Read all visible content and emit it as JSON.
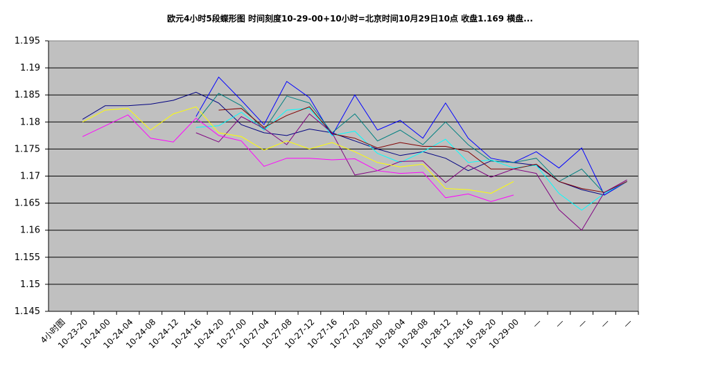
{
  "chart_data": {
    "type": "line",
    "title": "欧元4小时5段蝶形图  时间刻度10-29-00+10小时=北京时间10月29日10点  收盘1.169   横盘...",
    "categories": [
      "4小时图",
      "10-23-20",
      "10-24-00",
      "10-24-04",
      "10-24-08",
      "10-24-12",
      "10-24-16",
      "10-24-20",
      "10-27-00",
      "10-27-04",
      "10-27-08",
      "10-27-12",
      "10-27-16",
      "10-27-20",
      "10-28-00",
      "10-28-04",
      "10-28-08",
      "10-28-12",
      "10-28-16",
      "10-28-20",
      "10-29-00",
      "—",
      "—",
      "—",
      "—",
      "—"
    ],
    "ylim": [
      1.145,
      1.195
    ],
    "yticks": [
      1.145,
      1.15,
      1.155,
      1.16,
      1.165,
      1.17,
      1.175,
      1.18,
      1.185,
      1.19,
      1.195
    ],
    "grid": true,
    "series": [
      {
        "color": "#000080",
        "values": [
          null,
          1.1805,
          1.183,
          1.183,
          1.1833,
          1.184,
          1.1855,
          1.1835,
          1.1795,
          1.178,
          1.1775,
          1.1787,
          1.178,
          1.1765,
          1.175,
          1.1738,
          1.1745,
          1.1733,
          1.171,
          1.1728,
          1.1725,
          1.172,
          1.169,
          1.1675,
          1.1665,
          1.169
        ]
      },
      {
        "color": "#0000ff",
        "values": [
          null,
          null,
          null,
          null,
          null,
          null,
          1.181,
          1.1883,
          1.184,
          1.1795,
          1.1875,
          1.1845,
          1.1775,
          1.185,
          1.1785,
          1.1803,
          1.177,
          1.1835,
          1.177,
          1.1733,
          1.1725,
          1.1745,
          1.1715,
          1.1752,
          1.1665,
          1.169
        ]
      },
      {
        "color": "#008080",
        "values": [
          null,
          null,
          null,
          null,
          null,
          null,
          1.18,
          1.1853,
          1.183,
          1.1785,
          1.1848,
          1.1835,
          1.178,
          1.1815,
          1.1765,
          1.1785,
          1.1758,
          1.18,
          1.1758,
          1.1728,
          1.1725,
          1.1733,
          1.169,
          1.1713,
          1.1668,
          1.169
        ]
      },
      {
        "color": "#00ffff",
        "values": [
          null,
          null,
          null,
          null,
          null,
          null,
          1.179,
          1.1793,
          1.1818,
          1.1785,
          1.1822,
          1.1825,
          1.1775,
          1.1783,
          1.1742,
          1.1725,
          1.1745,
          1.1768,
          1.1725,
          1.173,
          1.1715,
          1.172,
          1.1668,
          1.1637,
          1.1668,
          1.169
        ]
      },
      {
        "color": "#800000",
        "values": [
          null,
          null,
          null,
          null,
          null,
          null,
          null,
          1.1822,
          1.1825,
          1.179,
          1.1812,
          1.1828,
          1.1778,
          1.177,
          1.1752,
          1.1762,
          1.1755,
          1.1755,
          1.1745,
          1.1713,
          1.1713,
          1.1722,
          1.169,
          1.1677,
          1.167,
          1.169
        ]
      },
      {
        "color": "#800080",
        "values": [
          null,
          null,
          null,
          null,
          null,
          null,
          1.178,
          1.1763,
          1.181,
          1.1788,
          1.1758,
          1.1815,
          1.178,
          1.1702,
          1.171,
          1.1727,
          1.1728,
          1.1688,
          1.172,
          1.1698,
          1.1713,
          1.1705,
          1.1638,
          1.16,
          1.167,
          1.1693
        ]
      },
      {
        "color": "#ffff00",
        "values": [
          null,
          1.18,
          1.1822,
          1.1825,
          1.1785,
          1.1815,
          1.1828,
          1.178,
          1.1773,
          1.1748,
          1.1765,
          1.175,
          1.1762,
          1.1745,
          1.1725,
          1.1717,
          1.1722,
          1.1677,
          1.1675,
          1.1668,
          1.169,
          null,
          null,
          null,
          null,
          null
        ]
      },
      {
        "color": "#ff00ff",
        "values": [
          null,
          1.1773,
          1.1793,
          1.1813,
          1.177,
          1.1763,
          1.1807,
          1.1775,
          1.1765,
          1.1718,
          1.1733,
          1.1733,
          1.173,
          1.1732,
          1.171,
          1.1705,
          1.1707,
          1.166,
          1.1667,
          1.1653,
          1.1665,
          null,
          null,
          null,
          null,
          null
        ]
      }
    ]
  }
}
